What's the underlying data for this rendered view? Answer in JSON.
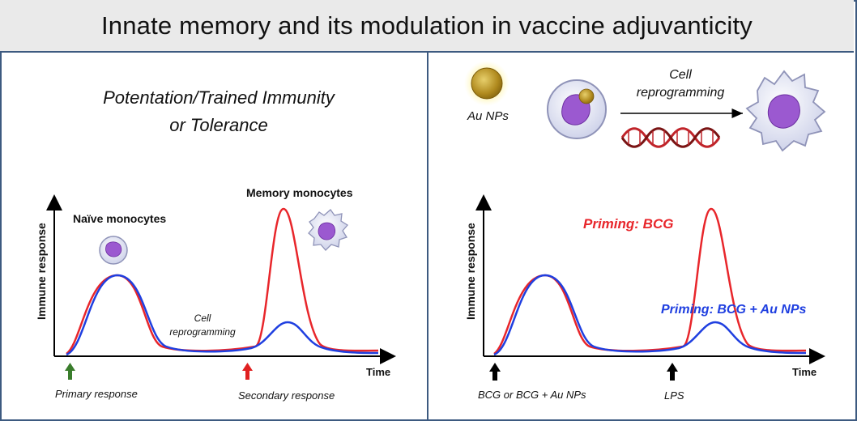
{
  "title": "Innate memory and its modulation in vaccine adjuvanticity",
  "left_panel": {
    "heading_line1": "Potentation/Trained Immunity",
    "heading_line2": "or Tolerance",
    "y_axis_label": "Immune response",
    "x_axis_label": "Time",
    "naive_label": "Naïve monocytes",
    "memory_label": "Memory monocytes",
    "cell_reprog_line1": "Cell",
    "cell_reprog_line2": "reprogramming",
    "primary_label": "Primary response",
    "secondary_label": "Secondary response"
  },
  "right_panel": {
    "au_label": "Au NPs",
    "cell_reprog_line1": "Cell",
    "cell_reprog_line2": "reprogramming",
    "y_axis_label": "Immune response",
    "x_axis_label": "Time",
    "priming_bcg": "Priming: BCG",
    "priming_bcg_au": "Priming: BCG + Au NPs",
    "arrow1_label": "BCG or BCG + Au NPs",
    "arrow2_label": "LPS"
  },
  "colors": {
    "red_curve": "#e8262b",
    "blue_curve": "#1f3fe0",
    "green_arrow": "#3a7d2c",
    "red_arrow": "#e02020",
    "border": "#3d5a80",
    "cell_nucleus": "#9b59d0",
    "gold_np": "#c9a227"
  }
}
